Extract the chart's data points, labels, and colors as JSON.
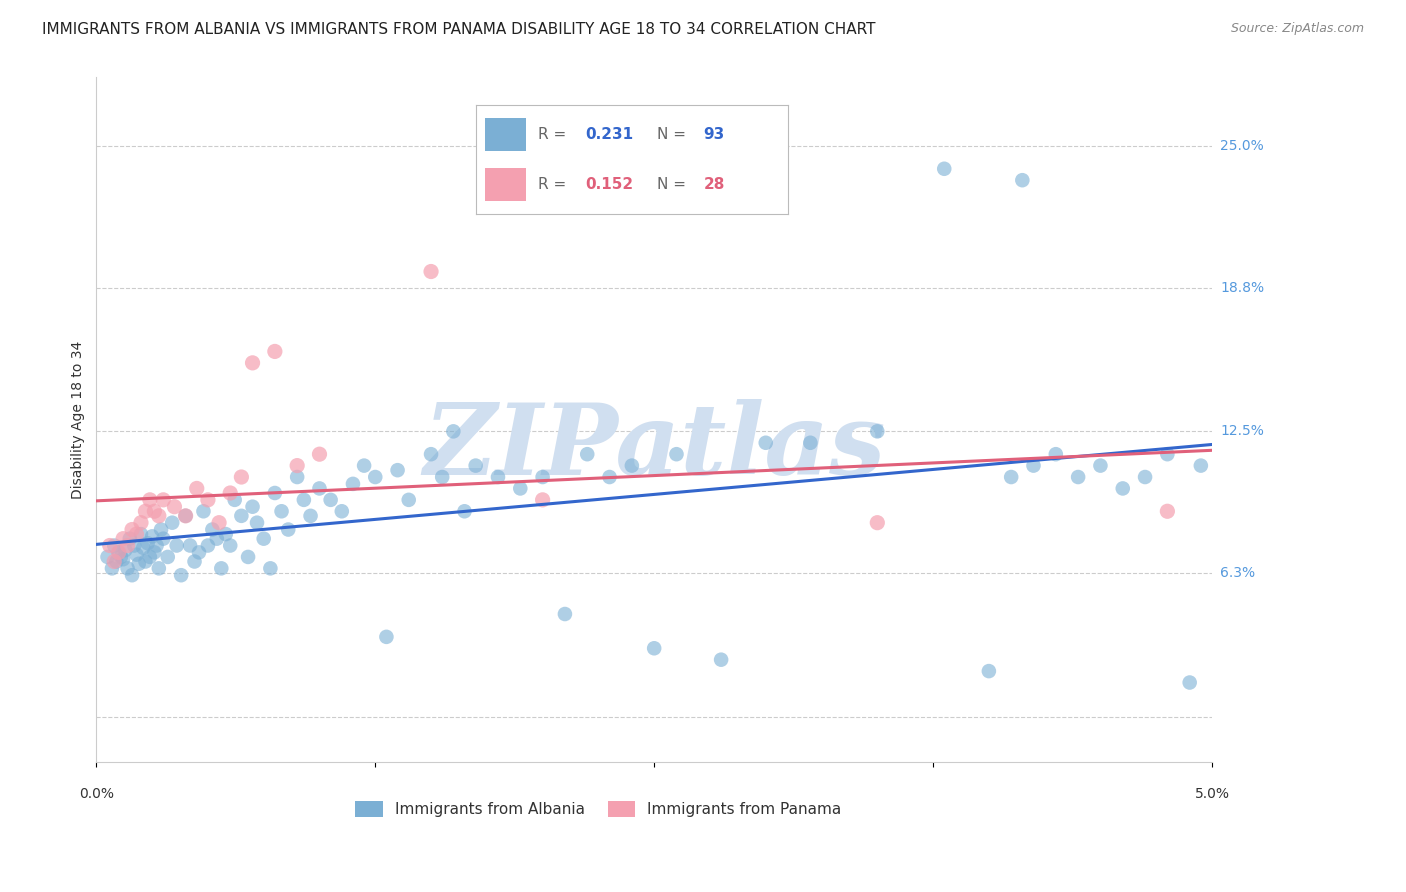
{
  "title": "IMMIGRANTS FROM ALBANIA VS IMMIGRANTS FROM PANAMA DISABILITY AGE 18 TO 34 CORRELATION CHART",
  "source": "Source: ZipAtlas.com",
  "ylabel": "Disability Age 18 to 34",
  "albania_color": "#7BAFD4",
  "panama_color": "#F4A0B0",
  "albania_line_color": "#3366CC",
  "panama_line_color": "#E0607A",
  "albania_label": "Immigrants from Albania",
  "panama_label": "Immigrants from Panama",
  "albania_R": "0.231",
  "albania_N": "93",
  "panama_R": "0.152",
  "panama_N": "28",
  "watermark": "ZIPatlas",
  "watermark_color": "#D0DFF0",
  "background_color": "#ffffff",
  "grid_color": "#CCCCCC",
  "title_color": "#222222",
  "source_color": "#888888",
  "tick_color_right": "#5599DD",
  "xlim": [
    0.0,
    5.0
  ],
  "ylim": [
    -2.0,
    28.0
  ],
  "ytick_vals": [
    0.0,
    6.3,
    12.5,
    18.8,
    25.0
  ],
  "ytick_labels": [
    "",
    "6.3%",
    "12.5%",
    "18.8%",
    "25.0%"
  ],
  "title_fontsize": 11,
  "source_fontsize": 9,
  "tick_fontsize": 10,
  "axis_label_fontsize": 10,
  "legend_fontsize": 11,
  "albania_x": [
    0.05,
    0.07,
    0.08,
    0.09,
    0.1,
    0.11,
    0.12,
    0.13,
    0.14,
    0.15,
    0.16,
    0.17,
    0.18,
    0.19,
    0.2,
    0.21,
    0.22,
    0.23,
    0.24,
    0.25,
    0.26,
    0.27,
    0.28,
    0.29,
    0.3,
    0.32,
    0.34,
    0.36,
    0.38,
    0.4,
    0.42,
    0.44,
    0.46,
    0.48,
    0.5,
    0.52,
    0.54,
    0.56,
    0.58,
    0.6,
    0.62,
    0.65,
    0.68,
    0.7,
    0.72,
    0.75,
    0.78,
    0.8,
    0.83,
    0.86,
    0.9,
    0.93,
    0.96,
    1.0,
    1.05,
    1.1,
    1.15,
    1.2,
    1.25,
    1.3,
    1.35,
    1.4,
    1.5,
    1.55,
    1.6,
    1.65,
    1.7,
    1.8,
    1.9,
    2.0,
    2.1,
    2.2,
    2.3,
    2.4,
    2.5,
    2.6,
    2.8,
    3.0,
    3.2,
    3.5,
    3.8,
    4.0,
    4.1,
    4.15,
    4.2,
    4.3,
    4.4,
    4.5,
    4.6,
    4.7,
    4.8,
    4.9,
    4.95
  ],
  "albania_y": [
    7.0,
    6.5,
    7.5,
    6.8,
    7.2,
    7.0,
    6.9,
    7.3,
    6.5,
    7.8,
    6.2,
    7.5,
    7.1,
    6.7,
    8.0,
    7.4,
    6.8,
    7.6,
    7.0,
    7.9,
    7.2,
    7.5,
    6.5,
    8.2,
    7.8,
    7.0,
    8.5,
    7.5,
    6.2,
    8.8,
    7.5,
    6.8,
    7.2,
    9.0,
    7.5,
    8.2,
    7.8,
    6.5,
    8.0,
    7.5,
    9.5,
    8.8,
    7.0,
    9.2,
    8.5,
    7.8,
    6.5,
    9.8,
    9.0,
    8.2,
    10.5,
    9.5,
    8.8,
    10.0,
    9.5,
    9.0,
    10.2,
    11.0,
    10.5,
    3.5,
    10.8,
    9.5,
    11.5,
    10.5,
    12.5,
    9.0,
    11.0,
    10.5,
    10.0,
    10.5,
    4.5,
    11.5,
    10.5,
    11.0,
    3.0,
    11.5,
    2.5,
    12.0,
    12.0,
    12.5,
    24.0,
    2.0,
    10.5,
    23.5,
    11.0,
    11.5,
    10.5,
    11.0,
    10.0,
    10.5,
    11.5,
    1.5,
    11.0
  ],
  "panama_x": [
    0.06,
    0.08,
    0.1,
    0.12,
    0.14,
    0.16,
    0.18,
    0.2,
    0.22,
    0.24,
    0.26,
    0.28,
    0.3,
    0.35,
    0.4,
    0.45,
    0.5,
    0.55,
    0.6,
    0.65,
    0.7,
    0.8,
    0.9,
    1.0,
    1.5,
    2.0,
    3.5,
    4.8
  ],
  "panama_y": [
    7.5,
    6.8,
    7.2,
    7.8,
    7.5,
    8.2,
    8.0,
    8.5,
    9.0,
    9.5,
    9.0,
    8.8,
    9.5,
    9.2,
    8.8,
    10.0,
    9.5,
    8.5,
    9.8,
    10.5,
    15.5,
    16.0,
    11.0,
    11.5,
    19.5,
    9.5,
    8.5,
    9.0
  ]
}
